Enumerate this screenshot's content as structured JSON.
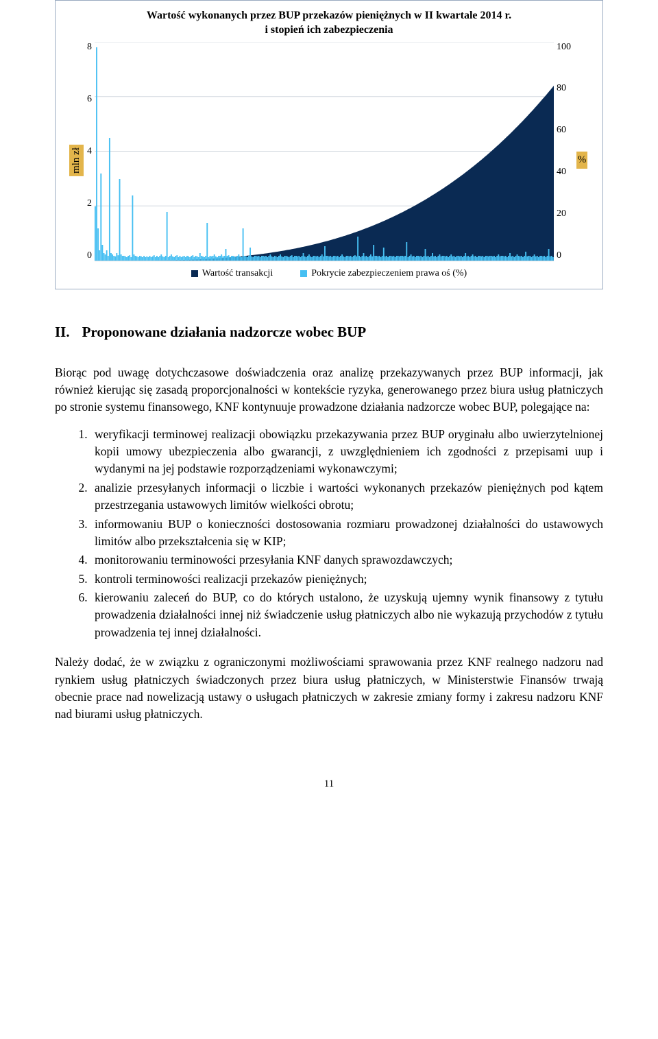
{
  "chart": {
    "type": "combo-bar-area",
    "title_line1": "Wartość wykonanych przez BUP przekazów pieniężnych w II kwartale 2014 r.",
    "title_line2": "i stopień ich zabezpieczenia",
    "y_left": {
      "label": "mln zł",
      "ticks": [
        "8",
        "6",
        "4",
        "2",
        "0"
      ],
      "lim": [
        0,
        8
      ]
    },
    "y_right": {
      "label": "%",
      "ticks": [
        "100",
        "80",
        "60",
        "40",
        "20",
        "0"
      ],
      "lim": [
        0,
        100
      ]
    },
    "grid_color": "#cfd6de",
    "background_color": "#ffffff",
    "bar_color": "#46bff2",
    "area_color": "#0a2a53",
    "legend": [
      {
        "label": "Wartość transakcji",
        "color": "#0a2a53"
      },
      {
        "label": "Pokrycie zabezpieczeniem prawa oś (%)",
        "color": "#46bff2"
      }
    ],
    "n_points": 320,
    "bars_y1": [
      2.0,
      7.8,
      1.2,
      0.4,
      3.2,
      0.6,
      0.3,
      0.25,
      0.4,
      0.2,
      4.5,
      0.3,
      0.25,
      0.2,
      0.18,
      0.3,
      0.22,
      3.0,
      0.25,
      0.2,
      0.2,
      0.18,
      0.15,
      0.2,
      0.22,
      0.15,
      2.4,
      0.25,
      0.2,
      0.18,
      0.15,
      0.2,
      0.18,
      0.15,
      0.2,
      0.15,
      0.18,
      0.15,
      0.2,
      0.15,
      0.18,
      0.22,
      0.15,
      0.2,
      0.15,
      0.2,
      0.25,
      0.18,
      0.15,
      0.2,
      1.8,
      0.15,
      0.2,
      0.25,
      0.18,
      0.15,
      0.2,
      0.22,
      0.15,
      0.2,
      0.15,
      0.18,
      0.2,
      0.15,
      0.2,
      0.18,
      0.15,
      0.2,
      0.22,
      0.15,
      0.2,
      0.18,
      0.15,
      0.3,
      0.2,
      0.18,
      0.15,
      0.2,
      1.4,
      0.15,
      0.2,
      0.18,
      0.2,
      0.25,
      0.18,
      0.15,
      0.2,
      0.2,
      0.25,
      0.18,
      0.2,
      0.45,
      0.2,
      0.22,
      0.15,
      0.2,
      0.2,
      0.18,
      0.15,
      0.2,
      0.25,
      0.18,
      0.15,
      1.2,
      0.2,
      0.18,
      0.15,
      0.2,
      0.5,
      0.18,
      0.15,
      0.2,
      0.2,
      0.18,
      0.2,
      0.15,
      0.2,
      0.2,
      0.18,
      0.2,
      0.15,
      0.2,
      0.25,
      0.18,
      0.15,
      0.2,
      0.18,
      0.15,
      0.2,
      0.25,
      0.18,
      0.15,
      0.2,
      0.2,
      0.18,
      0.15,
      0.2,
      0.22,
      0.15,
      0.2,
      0.2,
      0.18,
      0.2,
      0.15,
      0.2,
      0.3,
      0.18,
      0.15,
      0.2,
      0.25,
      0.18,
      0.15,
      0.2,
      0.2,
      0.18,
      0.2,
      0.15,
      0.2,
      0.25,
      0.18,
      0.55,
      0.2,
      0.2,
      0.18,
      0.2,
      0.15,
      0.2,
      0.2,
      0.18,
      0.2,
      0.15,
      0.2,
      0.25,
      0.18,
      0.15,
      0.2,
      0.2,
      0.18,
      0.2,
      0.15,
      0.2,
      0.22,
      0.18,
      0.9,
      0.2,
      0.15,
      0.2,
      0.3,
      0.18,
      0.2,
      0.15,
      0.2,
      0.25,
      0.18,
      0.6,
      0.2,
      0.2,
      0.18,
      0.2,
      0.15,
      0.2,
      0.5,
      0.18,
      0.2,
      0.15,
      0.2,
      0.2,
      0.18,
      0.2,
      0.15,
      0.2,
      0.2,
      0.18,
      0.2,
      0.2,
      0.18,
      0.2,
      0.7,
      0.15,
      0.2,
      0.25,
      0.18,
      0.2,
      0.15,
      0.2,
      0.2,
      0.18,
      0.2,
      0.15,
      0.2,
      0.45,
      0.18,
      0.2,
      0.15,
      0.2,
      0.3,
      0.18,
      0.2,
      0.15,
      0.2,
      0.25,
      0.18,
      0.2,
      0.2,
      0.18,
      0.2,
      0.15,
      0.2,
      0.25,
      0.18,
      0.2,
      0.15,
      0.2,
      0.2,
      0.18,
      0.2,
      0.15,
      0.2,
      0.3,
      0.18,
      0.2,
      0.15,
      0.2,
      0.25,
      0.18,
      0.2,
      0.15,
      0.2,
      0.2,
      0.18,
      0.2,
      0.15,
      0.2,
      0.2,
      0.18,
      0.2,
      0.2,
      0.18,
      0.2,
      0.15,
      0.2,
      0.25,
      0.18,
      0.2,
      0.2,
      0.18,
      0.2,
      0.15,
      0.2,
      0.3,
      0.18,
      0.2,
      0.15,
      0.2,
      0.25,
      0.2,
      0.18,
      0.2,
      0.15,
      0.2,
      0.35,
      0.18,
      0.2,
      0.2,
      0.15,
      0.2,
      0.25,
      0.18,
      0.2,
      0.15,
      0.2,
      0.2,
      0.18,
      0.2,
      0.15,
      0.2,
      0.45,
      0.18,
      0.2,
      0.15
    ],
    "area_y2_start": 0.2,
    "area_y2_end": 80,
    "area_y2_exp": 3.2
  },
  "section": {
    "number": "II.",
    "title": "Proponowane działania nadzorcze wobec BUP"
  },
  "para1": "Biorąc pod uwagę dotychczasowe doświadczenia oraz analizę przekazywanych przez BUP informacji, jak również kierując się zasadą proporcjonalności w kontekście ryzyka, generowanego przez biura usług płatniczych po stronie systemu finansowego, KNF kontynuuje prowadzone działania nadzorcze wobec BUP, polegające na:",
  "list": [
    "weryfikacji terminowej realizacji obowiązku przekazywania przez BUP oryginału albo uwierzytelnionej kopii umowy ubezpieczenia albo gwarancji, z uwzględnieniem ich zgodności z przepisami uup i wydanymi na jej podstawie rozporządzeniami wykonawczymi;",
    "analizie przesyłanych informacji o liczbie i wartości wykonanych przekazów pieniężnych pod kątem przestrzegania ustawowych limitów wielkości obrotu;",
    "informowaniu BUP o konieczności dostosowania rozmiaru prowadzonej działalności do ustawowych limitów albo przekształcenia się w KIP;",
    "monitorowaniu terminowości przesyłania KNF danych sprawozdawczych;",
    "kontroli terminowości realizacji przekazów pieniężnych;",
    "kierowaniu zaleceń do BUP, co do których ustalono, że uzyskują ujemny wynik finansowy z tytułu prowadzenia działalności innej niż świadczenie usług płatniczych albo nie wykazują przychodów z tytułu prowadzenia tej innej działalności."
  ],
  "para2": "Należy dodać, że w związku z ograniczonymi możliwościami sprawowania przez KNF realnego nadzoru nad rynkiem usług płatniczych świadczonych przez biura usług płatniczych, w Ministerstwie Finansów trwają obecnie prace nad nowelizacją ustawy o usługach płatniczych w zakresie zmiany formy i zakresu nadzoru KNF nad biurami usług płatniczych.",
  "page_number": "11"
}
